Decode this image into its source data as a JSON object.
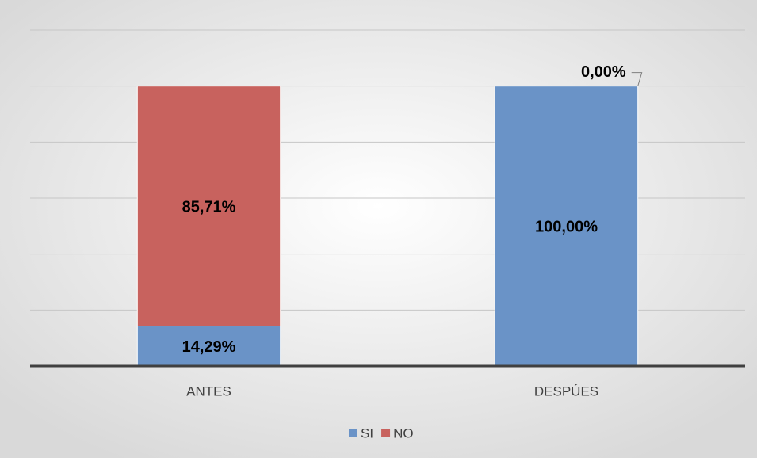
{
  "chart_data": {
    "type": "stacked_bar",
    "categories": [
      "ANTES",
      "DESPÚES"
    ],
    "series": [
      {
        "name": "SI",
        "color": "#6a93c7",
        "values": [
          14.29,
          100
        ],
        "value_labels": [
          "14,29%",
          "100,00%"
        ]
      },
      {
        "name": "NO",
        "color": "#c8625e",
        "values": [
          85.71,
          0
        ],
        "value_labels": [
          "85,71%",
          "0,00%"
        ]
      }
    ],
    "ylim": [
      0,
      120
    ],
    "yticks": [
      0,
      20,
      40,
      60,
      80,
      100,
      120
    ],
    "grid": true,
    "legend": "bottom"
  }
}
